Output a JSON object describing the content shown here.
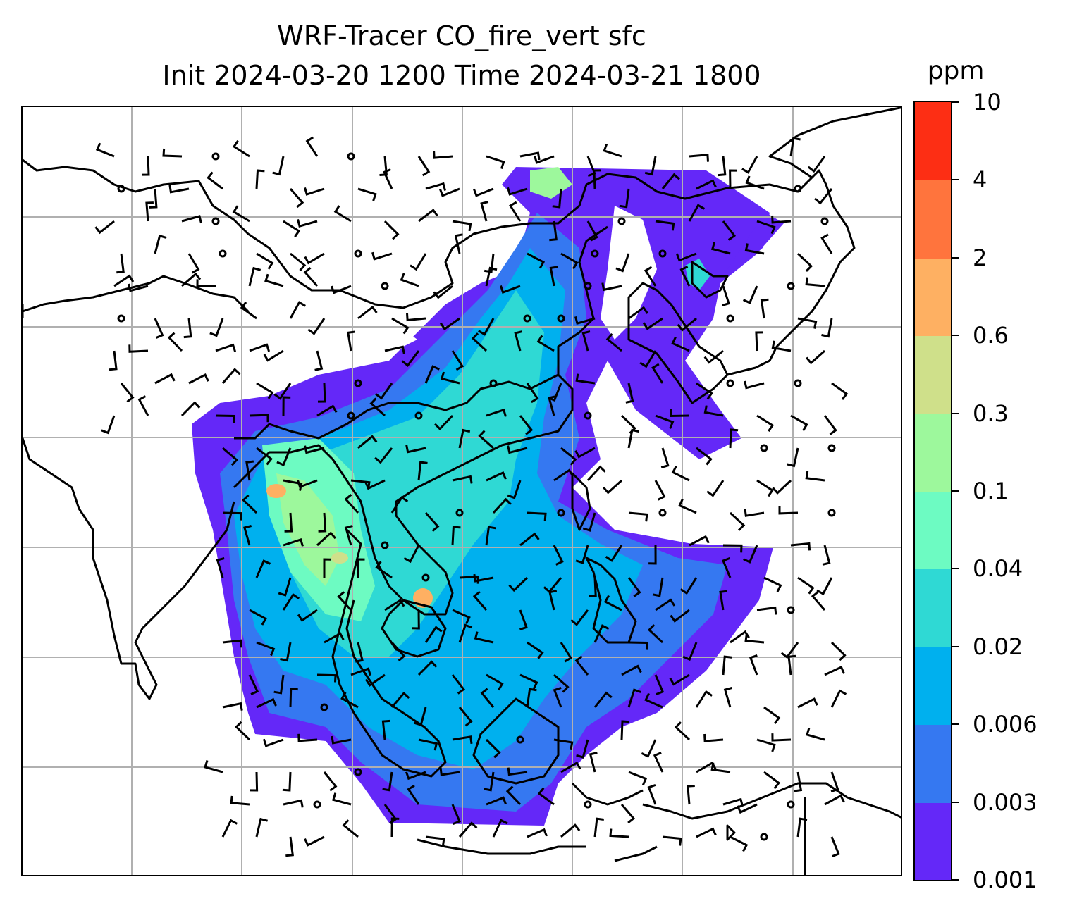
{
  "title": {
    "line1": "WRF-Tracer CO_fire_vert sfc",
    "line2": "Init 2024-03-20 1200 Time 2024-03-21 1800"
  },
  "colorbar": {
    "unit": "ppm",
    "levels": [
      "0.001",
      "0.003",
      "0.006",
      "0.02",
      "0.04",
      "0.1",
      "0.3",
      "0.6",
      "2",
      "4",
      "10"
    ],
    "colors": [
      "#6428f8",
      "#3578f1",
      "#00b0ee",
      "#2fd9d4",
      "#6dfbc2",
      "#9df89c",
      "#cfe08a",
      "#feb062",
      "#ff743d",
      "#fd2e14"
    ]
  },
  "map": {
    "gridlines": true,
    "coastline_color": "#000000",
    "gridline_color": "#b0b0b0",
    "barb_color": "#000000"
  }
}
